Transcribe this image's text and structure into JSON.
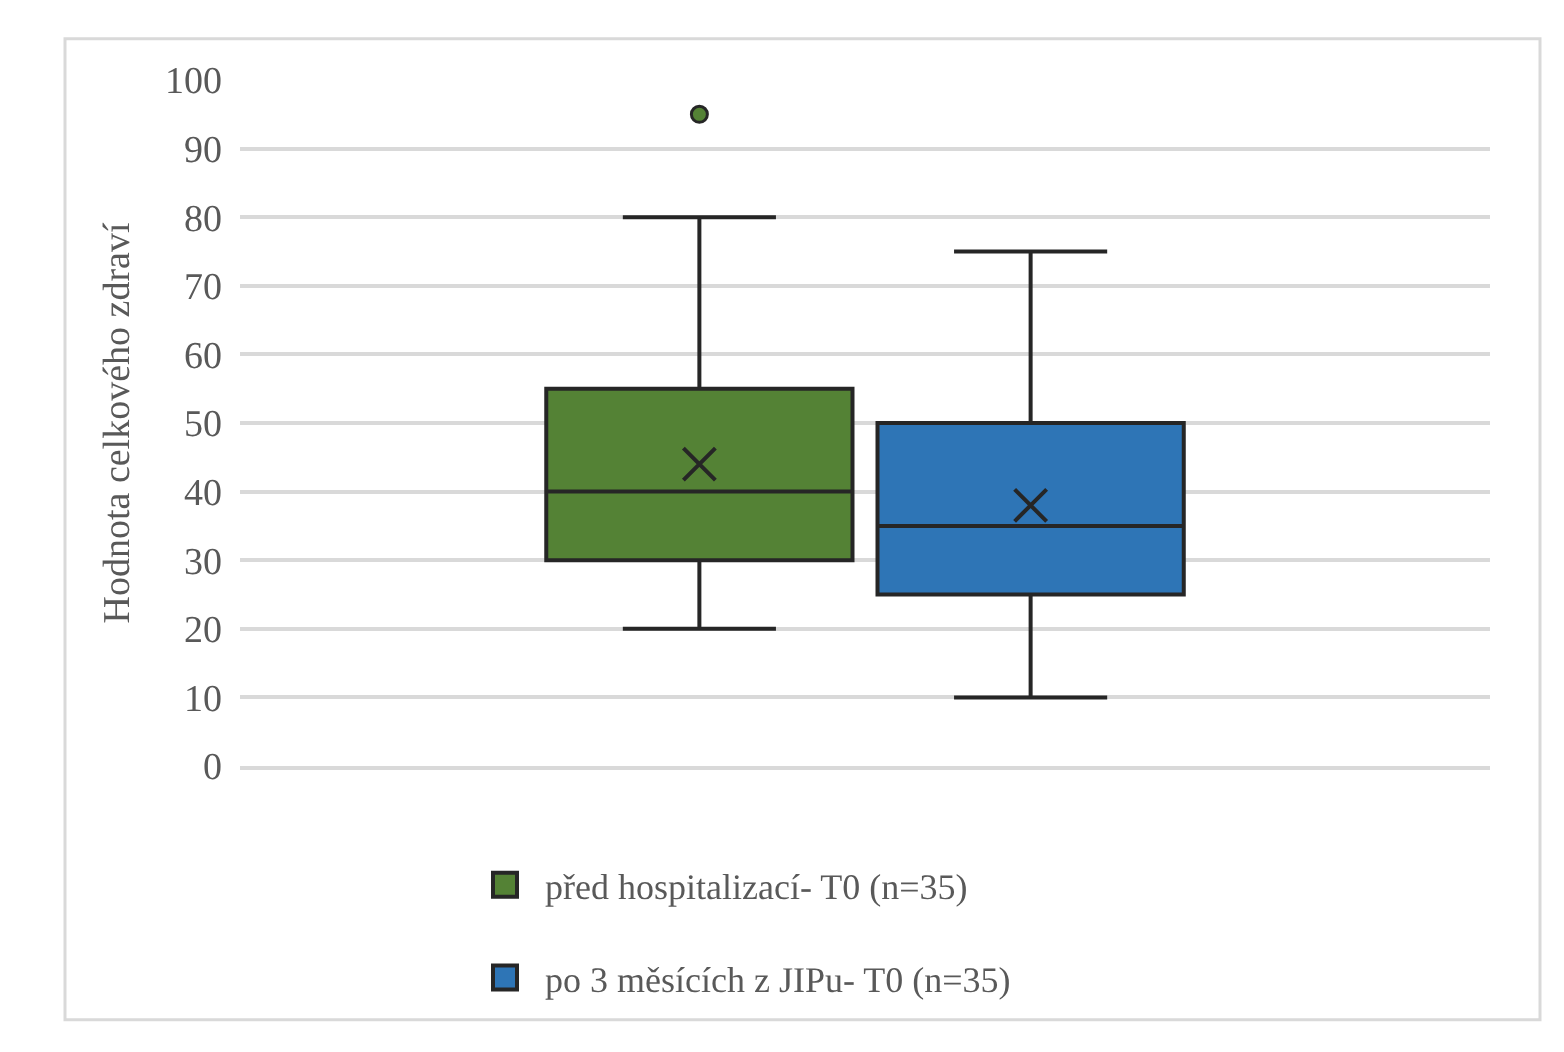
{
  "chart_data": {
    "type": "box",
    "ylabel": "Hodnota celkového zdraví",
    "categories": [
      null
    ],
    "series": [
      {
        "name": "před hospitalizací- T0 (n=35)",
        "color": "#548235",
        "boxes": [
          {
            "low": 20,
            "q1": 30,
            "median": 40,
            "q3": 55,
            "high": 80,
            "mean": 44,
            "outliers": [
              95
            ]
          }
        ]
      },
      {
        "name": "po 3 měsících z JIPu- T0 (n=35)",
        "color": "#2e75b6",
        "boxes": [
          {
            "low": 10,
            "q1": 25,
            "median": 35,
            "q3": 50,
            "high": 75,
            "mean": 38
          }
        ]
      }
    ],
    "ylim": [
      0,
      100
    ],
    "yticks": [
      0,
      10,
      20,
      30,
      40,
      50,
      60,
      70,
      80,
      90,
      100
    ],
    "grid": "y",
    "legend": "bottom"
  }
}
